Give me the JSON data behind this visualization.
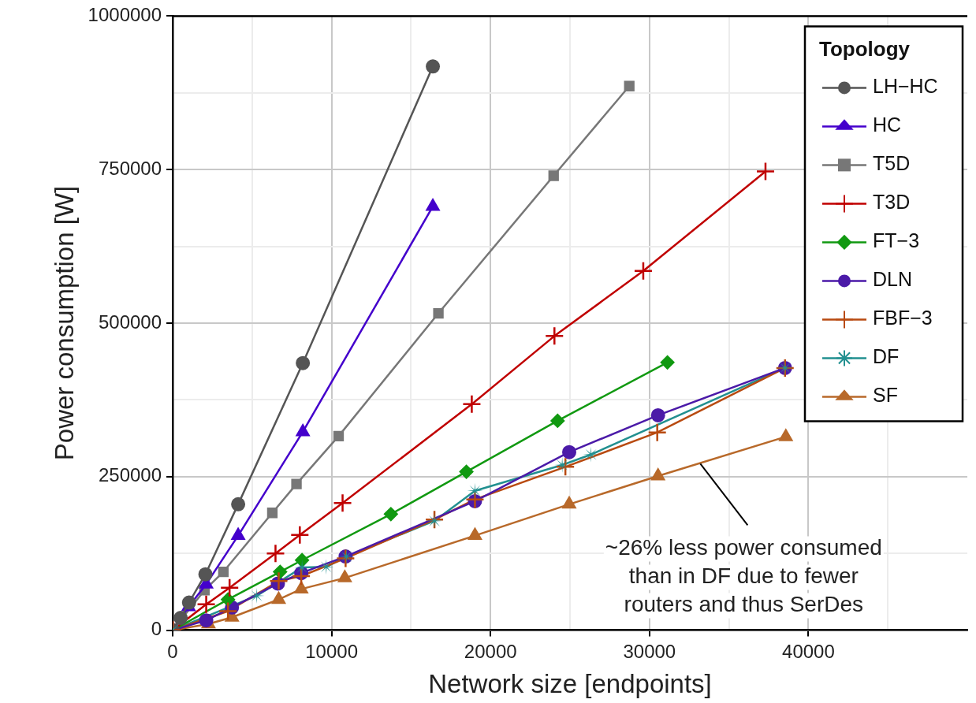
{
  "chart_data": {
    "type": "line",
    "xlabel": "Network size [endpoints]",
    "ylabel": "Power consumption [W]",
    "legend_title": "Topology",
    "legend": "top right",
    "grid": true,
    "xlim": [
      0,
      50000
    ],
    "xticks": [
      0,
      {
        "value": 5000,
        "label": null
      },
      10000,
      {
        "value": 15000,
        "label": null
      },
      20000,
      {
        "value": 25000,
        "label": null
      },
      30000,
      {
        "value": 35000,
        "label": null
      },
      40000,
      {
        "value": 45000,
        "label": null
      }
    ],
    "ylim": [
      0,
      1000000
    ],
    "yticks": [
      0,
      {
        "value": 125000,
        "label": null
      },
      250000,
      {
        "value": 375000,
        "label": null
      },
      500000,
      {
        "value": 625000,
        "label": null
      },
      750000,
      {
        "value": 875000,
        "label": null
      },
      1000000
    ],
    "series": [
      {
        "name": "LH−HC",
        "color": "#555555",
        "marker": "circle",
        "x": [
          0,
          500,
          1030,
          2060,
          4120,
          8190,
          16370
        ],
        "values": [
          0,
          20000,
          45000,
          91000,
          205000,
          435000,
          918000
        ]
      },
      {
        "name": "HC",
        "color": "#4400cc",
        "marker": "triangle",
        "x": [
          0,
          1000,
          2110,
          4120,
          8190,
          16370
        ],
        "values": [
          0,
          38000,
          75000,
          154000,
          323000,
          690000
        ]
      },
      {
        "name": "T5D",
        "color": "#777777",
        "marker": "square",
        "x": [
          0,
          2000,
          3190,
          6270,
          7790,
          10440,
          16720,
          23970,
          28730
        ],
        "values": [
          0,
          65000,
          95000,
          191000,
          238000,
          316000,
          516000,
          740000,
          886000
        ]
      },
      {
        "name": "T3D",
        "color": "#c00000",
        "marker": "cross",
        "x": [
          0,
          2110,
          3580,
          6470,
          8000,
          10690,
          18820,
          24020,
          29610,
          37300
        ],
        "values": [
          0,
          42000,
          69000,
          125000,
          155000,
          207000,
          368000,
          479000,
          585000,
          747000
        ]
      },
      {
        "name": "FT−3",
        "color": "#119911",
        "marker": "diamond",
        "x": [
          0,
          3480,
          6760,
          8140,
          13730,
          18480,
          24220,
          31130
        ],
        "values": [
          0,
          50000,
          95000,
          114000,
          189000,
          258000,
          341000,
          436000
        ]
      },
      {
        "name": "DLN",
        "color": "#4b1aa8",
        "marker": "circle",
        "x": [
          0,
          2110,
          3730,
          6620,
          8090,
          10880,
          19020,
          24950,
          30540,
          38530
        ],
        "values": [
          0,
          16000,
          37000,
          76000,
          93000,
          120000,
          210000,
          290000,
          350000,
          427000
        ]
      },
      {
        "name": "FBF−3",
        "color": "#b84a10",
        "marker": "cross",
        "x": [
          0,
          3480,
          6670,
          8090,
          10880,
          16470,
          19020,
          24710,
          30490,
          38530
        ],
        "values": [
          0,
          31000,
          80000,
          88000,
          117000,
          180000,
          213000,
          266000,
          322000,
          427000
        ]
      },
      {
        "name": "DF",
        "color": "#229090",
        "marker": "star",
        "x": [
          0,
          5290,
          8140,
          9660,
          10930,
          16470,
          19020,
          24510,
          26320,
          38530
        ],
        "values": [
          0,
          56000,
          102000,
          103000,
          120000,
          178000,
          227000,
          269000,
          286000,
          427000
        ]
      },
      {
        "name": "SF",
        "color": "#b8692a",
        "marker": "triangle",
        "x": [
          0,
          2250,
          3730,
          6670,
          8090,
          10830,
          19020,
          24950,
          30540,
          38580
        ],
        "values": [
          0,
          10000,
          21000,
          50000,
          67000,
          85000,
          154000,
          205000,
          251000,
          315000
        ]
      }
    ],
    "annotations": [
      {
        "text": "~26% less power consumed\nthan in DF due to fewer\nrouters and thus SerDes",
        "x": 33200,
        "y": 271000
      }
    ]
  }
}
